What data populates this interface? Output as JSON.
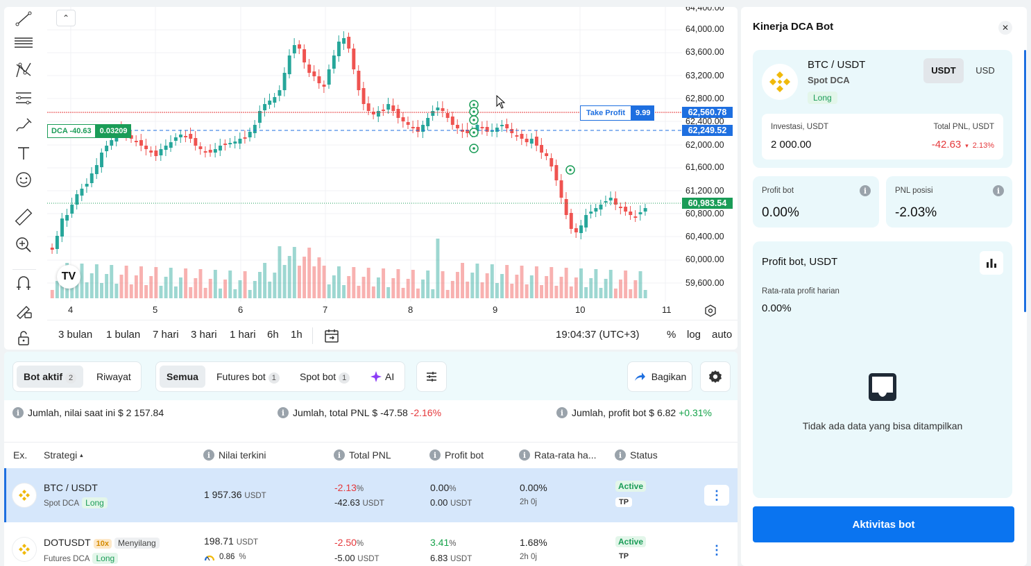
{
  "chart": {
    "price_ticks": [
      "64,400.00",
      "64,000.00",
      "63,600.00",
      "63,200.00",
      "62,800.00",
      "62,400.00",
      "62,000.00",
      "61,600.00",
      "61,200.00",
      "60,800.00",
      "60,400.00",
      "60,000.00",
      "59,600.00"
    ],
    "price_labels": {
      "take_profit": "62,560.78",
      "dca": "62,249.52",
      "current": "60,983.54"
    },
    "dca_label": {
      "text": "DCA -40.63",
      "value": "0.03209"
    },
    "tp_label": {
      "text": "Take Profit",
      "value": "9.99"
    },
    "time_ticks": [
      "4",
      "5",
      "6",
      "7",
      "8",
      "9",
      "10",
      "11"
    ],
    "ranges": [
      "3 bulan",
      "1 bulan",
      "7 hari",
      "3 hari",
      "1 hari",
      "6h",
      "1h"
    ],
    "clock": "19:04:37 (UTC+3)",
    "scale_opts": [
      "%",
      "log",
      "auto"
    ],
    "logo_text": "TV",
    "collapse_glyph": "⌃",
    "colors": {
      "up": "#26a69a",
      "down": "#ef5350",
      "tp_line": "#e5383b",
      "dca_line": "#1e6fe0",
      "current_line": "#1a9c57"
    }
  },
  "tabs": {
    "active_bots": {
      "label": "Bot aktif",
      "count": "2"
    },
    "history": "Riwayat",
    "filters": [
      {
        "label": "Semua",
        "count": ""
      },
      {
        "label": "Futures bot",
        "count": "1"
      },
      {
        "label": "Spot bot",
        "count": "1"
      },
      {
        "label": "AI",
        "count": ""
      }
    ],
    "share": "Bagikan"
  },
  "summary": {
    "current_value": {
      "label": "Jumlah, nilai saat ini",
      "value": "$ 2 157.84"
    },
    "total_pnl": {
      "label": "Jumlah, total PNL",
      "value": "$ -47.58",
      "pct": "-2.16%"
    },
    "bot_profit": {
      "label": "Jumlah, profit bot",
      "value": "$ 6.82",
      "pct": "+0.31%"
    }
  },
  "table": {
    "headers": [
      "Ex.",
      "Strategi",
      "Nilai terkini",
      "Total PNL",
      "Profit bot",
      "Rata-rata ha...",
      "Status"
    ],
    "sort_glyph": "▴",
    "rows": [
      {
        "pair": "BTC / USDT",
        "type": "Spot DCA",
        "side": "Long",
        "leverage": "",
        "extra": "",
        "value": "1 957.36",
        "value_unit": "USDT",
        "value_sub": "",
        "pnl_pct": "-2.13",
        "pnl_abs": "-42.63",
        "profit_pct": "0.00",
        "profit_abs": "0.00",
        "avg": "0.00%",
        "age": "2h 0j",
        "status": "Active",
        "status2": "TP"
      },
      {
        "pair": "DOTUSDT",
        "type": "Futures DCA",
        "side": "Long",
        "leverage": "10x",
        "extra": "Menyilang",
        "value": "198.71",
        "value_unit": "USDT",
        "value_sub": "0.86",
        "pnl_pct": "-2.50",
        "pnl_abs": "-5.00",
        "profit_pct": "3.41",
        "profit_abs": "6.83",
        "avg": "1.68%",
        "age": "2h 0j",
        "status": "Active",
        "status2": "TP"
      }
    ],
    "unit": "USDT",
    "pct": "%"
  },
  "panel": {
    "title": "Kinerja DCA Bot",
    "close_glyph": "✕",
    "pair": "BTC / USDT",
    "type": "Spot DCA",
    "side": "Long",
    "currencies": [
      "USDT",
      "USD"
    ],
    "investment_label": "Investasi, USDT",
    "investment_value": "2 000.00",
    "total_pnl_label": "Total PNL, USDT",
    "total_pnl_value": "-42.63",
    "total_pnl_pct": "2.13%",
    "bot_profit_label": "Profit bot",
    "bot_profit_value": "0.00%",
    "position_pnl_label": "PNL posisi",
    "position_pnl_value": "-2.03%",
    "profit_title": "Profit bot, USDT",
    "daily_avg_label": "Rata-rata profit harian",
    "daily_avg_value": "0.00%",
    "empty_text": "Tidak ada data yang bisa ditampilkan",
    "activity_button": "Aktivitas bot"
  },
  "icons": {
    "info": "i",
    "down_arrow": "▾",
    "more": "⋮"
  }
}
